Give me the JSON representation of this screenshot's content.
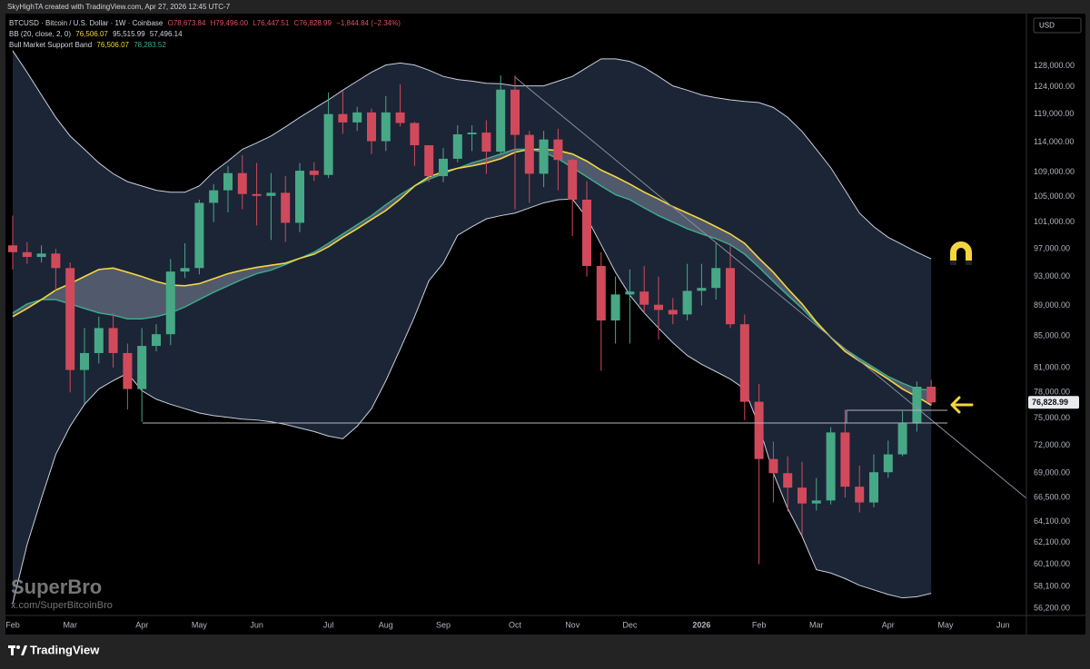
{
  "chart_data": {
    "type": "candlestick",
    "attribution": "SkyHighTA created with TradingView.com, Apr 27, 2026 12:45 UTC-7",
    "title": "BTCUSD · Bitcoin / U.S. Dollar · 1W · Coinbase",
    "ohlc_legend": [
      "O78,673.84",
      "H79,496.00",
      "L76,447.51",
      "C76,828.99",
      "−1,844.84 (−2.34%)"
    ],
    "indicators": [
      {
        "name": "BB (20, close, 2, 0)",
        "values": [
          "76,506.07",
          "95,515.99",
          "57,496.14"
        ]
      },
      {
        "name": "Bull Market Support Band",
        "values": [
          "76,506.07",
          "78,283.52"
        ]
      }
    ],
    "currency": "USD",
    "watermark": {
      "title": "SuperBro",
      "subtitle": "x.com/SuperBitcoinBro"
    },
    "footer": "TradingView",
    "last_price_label": "76,828.99",
    "log_scale": true,
    "up_color": "#47a886",
    "down_color": "#d04a5c",
    "band_color": "#c9cfdb",
    "band_fill": "#1b2536",
    "sma_color": "#f4d63f",
    "ema_color": "#3daf8e",
    "support_fill": "#7b8699",
    "categories": [
      "Feb",
      null,
      null,
      null,
      "Mar",
      null,
      null,
      null,
      null,
      "Apr",
      null,
      null,
      null,
      "May",
      null,
      null,
      null,
      "Jun",
      null,
      null,
      null,
      null,
      "Jul",
      null,
      null,
      null,
      "Aug",
      null,
      null,
      null,
      "Sep",
      null,
      null,
      null,
      null,
      "Oct",
      null,
      null,
      null,
      "Nov",
      null,
      null,
      null,
      "Dec",
      null,
      null,
      null,
      null,
      "2026",
      null,
      null,
      null,
      "Feb",
      null,
      null,
      null,
      "Mar",
      null,
      null,
      null,
      null,
      "Apr",
      null,
      null,
      null,
      "May",
      null,
      null,
      null,
      "Jun"
    ],
    "open": [
      97500,
      96500,
      95800,
      96300,
      94200,
      80700,
      82800,
      86000,
      82800,
      78400,
      83700,
      85200,
      93700,
      94200,
      104000,
      106000,
      108800,
      105400,
      105100,
      105600,
      100900,
      109200,
      108500,
      119000,
      117500,
      119300,
      114200,
      119300,
      117400,
      113500,
      108300,
      111200,
      115400,
      115700,
      112400,
      123500,
      115300,
      108700,
      114500,
      111000,
      104500,
      94500,
      87000,
      90500,
      90900,
      89100,
      88400,
      87800,
      91000,
      91400,
      94200,
      86500,
      76900,
      70500,
      69000,
      67500,
      65900,
      66200,
      73400,
      67600,
      66000,
      69100,
      71000,
      74400,
      78673.84,
      null,
      null,
      null,
      null,
      null
    ],
    "high": [
      102000,
      98000,
      97500,
      97000,
      95000,
      86000,
      87500,
      88000,
      84000,
      86000,
      86500,
      95500,
      97800,
      104500,
      107000,
      110000,
      111800,
      110500,
      108800,
      108300,
      110500,
      110600,
      123000,
      123200,
      120300,
      120000,
      122300,
      124500,
      117600,
      113500,
      113000,
      117000,
      117000,
      117900,
      126200,
      126200,
      116000,
      116000,
      116400,
      111200,
      107500,
      96500,
      93000,
      94000,
      94500,
      93000,
      90000,
      94800,
      94800,
      97800,
      97500,
      87800,
      79000,
      72400,
      70800,
      70200,
      68500,
      74000,
      76000,
      69800,
      71000,
      72500,
      75800,
      79300,
      79496,
      null,
      null,
      null,
      null,
      null
    ],
    "low": [
      94000,
      94800,
      95000,
      91000,
      78000,
      76700,
      81500,
      81000,
      76000,
      74600,
      83000,
      83800,
      92800,
      93300,
      101000,
      102500,
      103000,
      100500,
      98300,
      98000,
      99500,
      107500,
      108000,
      115500,
      116000,
      112000,
      112500,
      116800,
      110000,
      107300,
      107300,
      110600,
      112500,
      108700,
      112000,
      103000,
      104000,
      106500,
      106000,
      98900,
      93000,
      80600,
      84000,
      84000,
      88000,
      84500,
      86500,
      87000,
      89000,
      89800,
      86000,
      74800,
      60100,
      66000,
      65100,
      62800,
      65200,
      65800,
      66500,
      65000,
      65500,
      68500,
      70800,
      73500,
      76447.51,
      null,
      null,
      null,
      null,
      null
    ],
    "close": [
      96500,
      95800,
      96300,
      94200,
      80700,
      82800,
      86000,
      82800,
      78400,
      83700,
      85200,
      93700,
      94200,
      104000,
      106000,
      108800,
      105400,
      105100,
      105600,
      100900,
      109200,
      108500,
      119000,
      117500,
      119300,
      114200,
      119300,
      117400,
      113500,
      108300,
      111200,
      115400,
      115700,
      112400,
      123500,
      115300,
      108700,
      114500,
      111000,
      104500,
      94500,
      87000,
      90500,
      90900,
      89100,
      88400,
      87800,
      91000,
      91400,
      94200,
      86500,
      76900,
      70500,
      69000,
      67500,
      65900,
      66200,
      73400,
      67600,
      66000,
      69100,
      71000,
      74400,
      78673.84,
      76828.99,
      null,
      null,
      null,
      null,
      null
    ],
    "bb_upper": [
      131000,
      126800,
      122500,
      118400,
      115100,
      112800,
      110500,
      108700,
      107400,
      106700,
      106000,
      105700,
      105700,
      106700,
      109000,
      110800,
      112800,
      113900,
      115100,
      116700,
      118400,
      120000,
      121600,
      123400,
      125100,
      126800,
      128200,
      128600,
      128200,
      127200,
      126000,
      125400,
      125100,
      124700,
      124600,
      124200,
      124200,
      124200,
      125100,
      126000,
      127700,
      129400,
      129400,
      128900,
      127700,
      126000,
      124200,
      123400,
      122500,
      122000,
      121600,
      121300,
      121100,
      120200,
      118400,
      115900,
      112800,
      109700,
      106000,
      102400,
      100300,
      98700,
      97600,
      96500,
      95515.99,
      null,
      null,
      null,
      null,
      null
    ],
    "bb_lower": [
      56600,
      61900,
      66400,
      71000,
      74100,
      76600,
      78400,
      79400,
      80300,
      78200,
      77200,
      76600,
      76100,
      75600,
      75300,
      75100,
      74900,
      74800,
      74600,
      74300,
      73900,
      73500,
      73000,
      72700,
      74100,
      76100,
      79400,
      83300,
      87500,
      92400,
      94900,
      99000,
      100300,
      101500,
      102000,
      102400,
      103200,
      104000,
      104500,
      104600,
      101700,
      97600,
      93600,
      90400,
      88000,
      86000,
      84100,
      82500,
      81400,
      80500,
      79600,
      78400,
      74100,
      69000,
      65400,
      62700,
      59600,
      59300,
      58800,
      58200,
      57800,
      57400,
      57100,
      57200,
      57496.14,
      null,
      null,
      null,
      null,
      null
    ],
    "sma": [
      87500,
      88600,
      89800,
      91100,
      92000,
      93000,
      94000,
      94200,
      93600,
      93000,
      92300,
      91800,
      91700,
      92000,
      92700,
      93400,
      93900,
      94300,
      94600,
      94900,
      95600,
      96200,
      97300,
      98700,
      100000,
      101400,
      102800,
      104600,
      106700,
      108200,
      109000,
      109600,
      110000,
      110500,
      111200,
      112300,
      112800,
      112800,
      112600,
      112000,
      110800,
      109300,
      108200,
      107000,
      105700,
      104600,
      103400,
      102400,
      101400,
      100300,
      99200,
      97800,
      95600,
      93600,
      91300,
      89200,
      86800,
      84800,
      83000,
      81800,
      80700,
      79600,
      78400,
      77500,
      76506.07,
      null,
      null,
      null,
      null,
      null
    ],
    "ema": [
      88000,
      89200,
      89800,
      89800,
      89200,
      88600,
      88000,
      87700,
      87200,
      87200,
      87500,
      88000,
      88800,
      89800,
      90800,
      91700,
      92600,
      93400,
      93900,
      94700,
      95600,
      96500,
      97800,
      99200,
      100600,
      102000,
      103700,
      105300,
      106700,
      107800,
      108700,
      109600,
      110500,
      111200,
      112000,
      112800,
      112800,
      112300,
      111200,
      109700,
      108200,
      106700,
      105300,
      104500,
      103200,
      102000,
      101000,
      100000,
      99200,
      98500,
      97600,
      96200,
      94300,
      92300,
      90400,
      88600,
      86600,
      84800,
      83300,
      82100,
      81000,
      79900,
      79100,
      78400,
      78283.52,
      null,
      null,
      null,
      null,
      null
    ],
    "ylim": [
      55600,
      138600
    ],
    "yticks": [
      {
        "value": 128000,
        "label": "128,000.00"
      },
      {
        "value": 124000,
        "label": "124,000.00"
      },
      {
        "value": 119000,
        "label": "119,000.00"
      },
      {
        "value": 114000,
        "label": "114,000.00"
      },
      {
        "value": 109000,
        "label": "109,000.00"
      },
      {
        "value": 105000,
        "label": "105,000.00"
      },
      {
        "value": 101000,
        "label": "101,000.00"
      },
      {
        "value": 97000,
        "label": "97,000.00"
      },
      {
        "value": 93000,
        "label": "93,000.00"
      },
      {
        "value": 89000,
        "label": "89,000.00"
      },
      {
        "value": 85000,
        "label": "85,000.00"
      },
      {
        "value": 81000,
        "label": "81,000.00"
      },
      {
        "value": 78000,
        "label": "78,000.00"
      },
      {
        "value": 75000,
        "label": "75,000.00"
      },
      {
        "value": 72000,
        "label": "72,000.00"
      },
      {
        "value": 69000,
        "label": "69,000.00"
      },
      {
        "value": 66500,
        "label": "66,500.00"
      },
      {
        "value": 64100,
        "label": "64,100.00"
      },
      {
        "value": 62100,
        "label": "62,100.00"
      },
      {
        "value": 60100,
        "label": "60,100.00"
      },
      {
        "value": 58100,
        "label": "58,100.00"
      },
      {
        "value": 56200,
        "label": "56,200.00"
      }
    ]
  }
}
